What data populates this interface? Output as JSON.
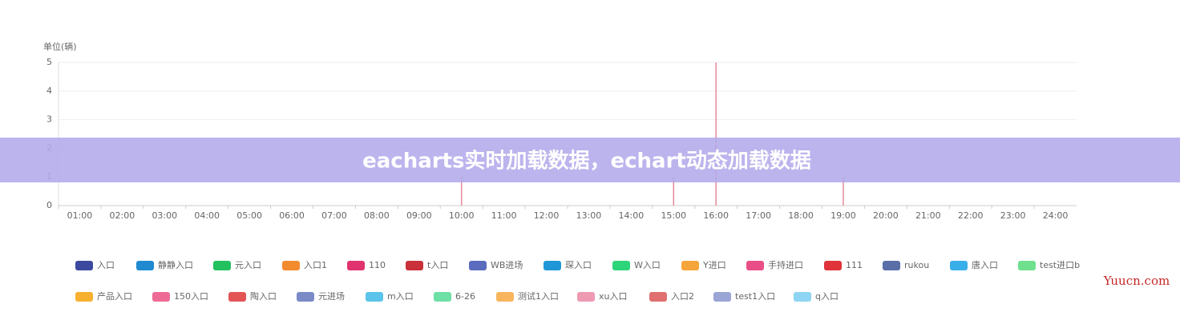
{
  "chart_data": {
    "type": "bar",
    "y_axis_label": "单位(辆)",
    "categories": [
      "01:00",
      "02:00",
      "03:00",
      "04:00",
      "05:00",
      "06:00",
      "07:00",
      "08:00",
      "09:00",
      "10:00",
      "11:00",
      "12:00",
      "13:00",
      "14:00",
      "15:00",
      "16:00",
      "17:00",
      "18:00",
      "19:00",
      "20:00",
      "21:00",
      "22:00",
      "23:00",
      "24:00"
    ],
    "values": [
      0,
      0,
      0,
      0,
      0,
      0,
      0,
      0,
      0,
      1,
      0,
      0,
      0,
      0,
      1,
      5,
      0,
      0,
      1,
      0,
      0,
      0,
      0,
      0
    ],
    "color": "#e58a9b",
    "ylim": [
      0,
      5
    ],
    "yticks": [
      0,
      1,
      2,
      3,
      4,
      5
    ],
    "grid": true,
    "series": [
      {
        "name": "入口",
        "color": "#3b4a9e"
      },
      {
        "name": "静静入口",
        "color": "#1f8ad0"
      },
      {
        "name": "元入口",
        "color": "#22c15e"
      },
      {
        "name": "入口1",
        "color": "#f28b2e"
      },
      {
        "name": "110",
        "color": "#e0336f"
      },
      {
        "name": "t入口",
        "color": "#c9303a"
      },
      {
        "name": "WB进场",
        "color": "#5b6bbd"
      },
      {
        "name": "琛入口",
        "color": "#1f96d6"
      },
      {
        "name": "W入口",
        "color": "#2ed47a"
      },
      {
        "name": "Y进口",
        "color": "#f5a53a"
      },
      {
        "name": "手持进口",
        "color": "#e94f86"
      },
      {
        "name": "111",
        "color": "#e0333a"
      },
      {
        "name": "rukou",
        "color": "#5a6fa8"
      },
      {
        "name": "唐入口",
        "color": "#3aaee8"
      },
      {
        "name": "test进口b",
        "color": "#6fe08e"
      },
      {
        "name": "产品入口",
        "color": "#f7b02f"
      },
      {
        "name": "150入口",
        "color": "#ee6b95"
      },
      {
        "name": "陶入口",
        "color": "#e35555"
      },
      {
        "name": "元进场",
        "color": "#7a8bc8"
      },
      {
        "name": "m入口",
        "color": "#5cc4ea"
      },
      {
        "name": "6-26",
        "color": "#6ee0a5"
      },
      {
        "name": "测试1入口",
        "color": "#f9b55e"
      },
      {
        "name": "xu入口",
        "color": "#ef9ab3"
      },
      {
        "name": "入口2",
        "color": "#e07070"
      },
      {
        "name": "test1入口",
        "color": "#9aa5d6"
      },
      {
        "name": "q入口",
        "color": "#8dd5f2"
      }
    ]
  },
  "banner": "eacharts实时加载数据，echart动态加载数据",
  "watermark": "Yuucn.com"
}
